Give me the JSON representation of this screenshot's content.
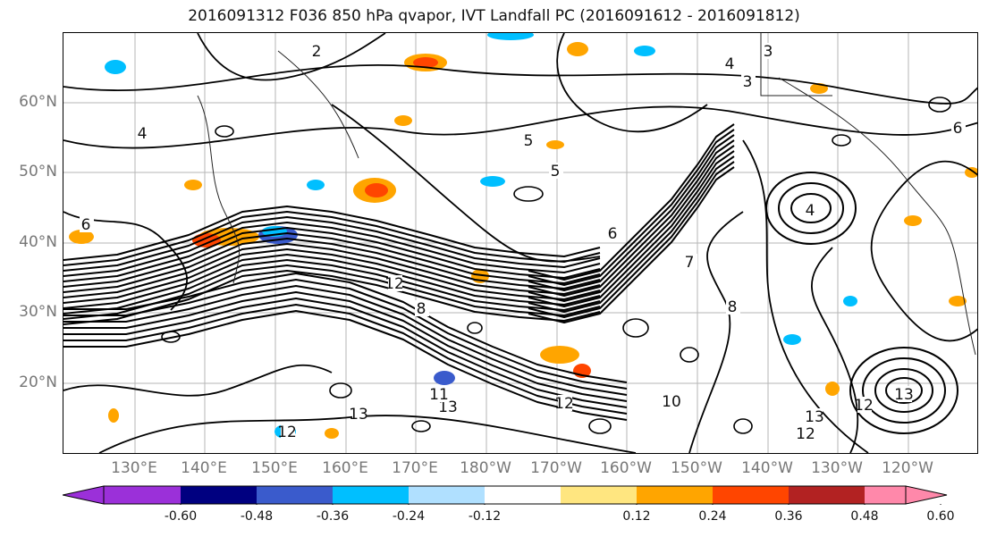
{
  "title": "2016091312 F036 850 hPa qvapor, IVT Landfall PC (2016091612 - 2016091812)",
  "map": {
    "latitude_labels": [
      "60°N",
      "50°N",
      "40°N",
      "30°N",
      "20°N"
    ],
    "longitude_labels": [
      "130°E",
      "140°E",
      "150°E",
      "160°E",
      "170°E",
      "180°W",
      "170°W",
      "160°W",
      "150°W",
      "140°W",
      "130°W",
      "120°W"
    ],
    "contour_labels": [
      "2",
      "3",
      "3",
      "4",
      "4",
      "5",
      "5",
      "6",
      "6",
      "4",
      "12",
      "12",
      "13",
      "13",
      "12",
      "13",
      "13",
      "12",
      "11",
      "12",
      "10",
      "8",
      "7",
      "8",
      "6"
    ],
    "gridlines": true
  },
  "colorbar": {
    "tick_labels": [
      "-0.60",
      "-0.48",
      "-0.36",
      "-0.24",
      "-0.12",
      "0.12",
      "0.24",
      "0.36",
      "0.48",
      "0.60"
    ],
    "colors": [
      "#9b30d9",
      "#000080",
      "#3a5bcc",
      "#00bfff",
      "#b0e0ff",
      "#ffffff",
      "#ffe680",
      "#ffa500",
      "#ff4500",
      "#b22222",
      "#ff88aa"
    ],
    "extend": "both"
  }
}
